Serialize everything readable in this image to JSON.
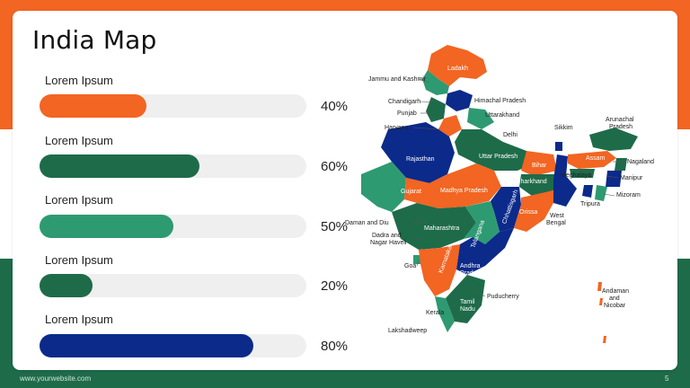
{
  "title": "India Map",
  "colors": {
    "orange": "#f26522",
    "green": "#1e6b4a",
    "teal": "#2e9a72",
    "navy": "#0b2a8a",
    "track": "#efefef"
  },
  "rows": [
    {
      "label": "Lorem Ipsum",
      "percent": "40%",
      "value": 0.4,
      "color": "#f26522"
    },
    {
      "label": "Lorem Ipsum",
      "percent": "60%",
      "value": 0.6,
      "color": "#1e6b4a"
    },
    {
      "label": "Lorem Ipsum",
      "percent": "50%",
      "value": 0.5,
      "color": "#2e9a72"
    },
    {
      "label": "Lorem Ipsum",
      "percent": "20%",
      "value": 0.2,
      "color": "#1e6b4a"
    },
    {
      "label": "Lorem Ipsum",
      "percent": "80%",
      "value": 0.8,
      "color": "#0b2a8a"
    }
  ],
  "map_labels": {
    "ladakh": "Ladakh",
    "jammu": "Jammu and Kashmir",
    "himachal": "Himachal Pradesh",
    "chandigarh": "Chandigarh",
    "punjab": "Punjab",
    "uttarakhand": "Uttarakhand",
    "haryana": "Haryana",
    "delhi": "Delhi",
    "sikkim": "Sikkim",
    "arunachal1": "Arunachal",
    "arunachal2": "Pradesh",
    "rajasthan": "Rajasthan",
    "uttarpradesh": "Uttar Pradesh",
    "bihar": "Bihar",
    "assam": "Assam",
    "nagaland": "Nagaland",
    "meghalaya": "Meghalaya",
    "manipur": "Manipur",
    "jharkhand": "Jharkhand",
    "gujarat": "Gujarat",
    "madhyapradesh": "Madhya Pradesh",
    "mizoram": "Mizoram",
    "tripura": "Tripura",
    "chhattisgarh": "Chhattisgarh",
    "orissa": "Orissa",
    "westbengal1": "West",
    "westbengal2": "Bengal",
    "daman": "Daman and Diu",
    "dadra1": "Dadra and",
    "dadra2": "Nagar Haveli",
    "maharashtra": "Maharashtra",
    "telangana": "Telangana",
    "goa": "Goa",
    "karnataka": "Karnataka",
    "andhra1": "Andhra",
    "andhra2": "Pradesh",
    "puducherry": "Puducherry",
    "tamil1": "Tamil",
    "tamil2": "Nadu",
    "kerala": "Kerala",
    "lakshadweep": "Lakshadweep",
    "andaman1": "Andaman",
    "andaman2": "and",
    "andaman3": "Nicobar"
  },
  "footer": {
    "url": "www.yourwebsite.com",
    "page": "5"
  }
}
